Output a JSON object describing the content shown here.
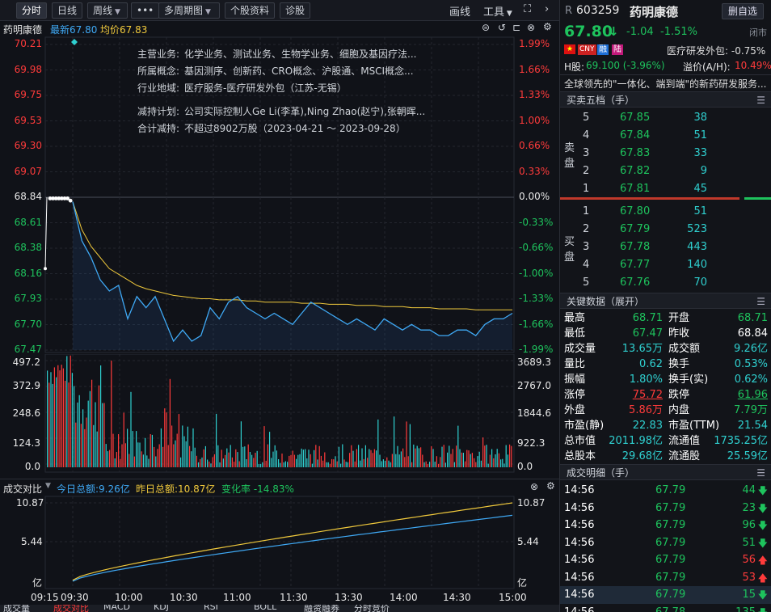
{
  "toolbar": {
    "tabs": [
      "分时",
      "日线",
      "周线",
      "•••",
      "多周期图",
      "个股资料",
      "诊股"
    ],
    "right": [
      "画线",
      "工具"
    ]
  },
  "header": {
    "name": "药明康德",
    "latest": "最新67.80",
    "avg": "均价67.83"
  },
  "price_axis": [
    "70.21",
    "69.98",
    "69.75",
    "69.53",
    "69.30",
    "69.07",
    "68.84",
    "68.61",
    "68.38",
    "68.16",
    "67.93",
    "67.70",
    "67.47"
  ],
  "pct_axis": [
    "1.99%",
    "1.66%",
    "1.33%",
    "1.00%",
    "0.66%",
    "0.33%",
    "0.00%",
    "-0.33%",
    "-0.66%",
    "-1.00%",
    "-1.33%",
    "-1.66%",
    "-1.99%"
  ],
  "info": [
    {
      "k": "主营业务:",
      "v": "化学业务、测试业务、生物学业务、细胞及基因疗法..."
    },
    {
      "k": "所属概念:",
      "v": "基因测序、创新药、CRO概念、沪股通、MSCI概念..."
    },
    {
      "k": "行业地域:",
      "v": "医疗服务-医疗研发外包（江苏-无锡）"
    },
    {
      "k": "减持计划:",
      "v": "公司实际控制人Ge Li(李革),Ning Zhao(赵宁),张朝晖..."
    },
    {
      "k": "合计减持:",
      "v": "不超过8902万股（2023-04-21 ～ 2023-09-28）"
    }
  ],
  "vol_axis_left": [
    "497.2",
    "372.9",
    "248.6",
    "124.3",
    "0.0"
  ],
  "vol_axis_right": [
    "3689.3",
    "2767.0",
    "1844.6",
    "922.3",
    "0.0"
  ],
  "compare": {
    "title": "成交对比",
    "today": "今日总额:9.26亿",
    "yesterday": "昨日总额:10.87亿",
    "change": "变化率 -14.83%",
    "axis_left": [
      "10.87",
      "5.44",
      "亿"
    ],
    "axis_right": [
      "10.87",
      "5.44",
      "亿"
    ]
  },
  "time_axis": [
    "09:15",
    "09:30",
    "10:00",
    "10:30",
    "11:00",
    "11:30",
    "13:30",
    "14:00",
    "14:30",
    "15:00"
  ],
  "bottom_tabs": [
    "成交量",
    "成交对比",
    "MACD",
    "KDJ",
    "RSI",
    "BOLL",
    "融资融券",
    "分时竞价"
  ],
  "stock": {
    "flag": "R",
    "code": "603259",
    "name": "药明康德",
    "delete_btn": "删自选",
    "price": "67.80",
    "change": "-1.04",
    "change_pct": "-1.51%",
    "status": "闭市",
    "badges": [
      "CNY",
      "融",
      "陆"
    ],
    "sector": "医疗研发外包: -0.75%",
    "hshare_label": "H股:",
    "hshare_val": "69.100 (-3.96%)",
    "premium_label": "溢价(A/H):",
    "premium_val": "10.49%",
    "slogan": "全球领先的\"一体化、端到端\"的新药研发服务..."
  },
  "orderbook": {
    "title": "买卖五档（手）",
    "sell_label": [
      "卖",
      "盘"
    ],
    "buy_label": [
      "买",
      "盘"
    ],
    "sell": [
      {
        "n": "5",
        "p": "67.85",
        "v": "38"
      },
      {
        "n": "4",
        "p": "67.84",
        "v": "51"
      },
      {
        "n": "3",
        "p": "67.83",
        "v": "33"
      },
      {
        "n": "2",
        "p": "67.82",
        "v": "9"
      },
      {
        "n": "1",
        "p": "67.81",
        "v": "45"
      }
    ],
    "buy": [
      {
        "n": "1",
        "p": "67.80",
        "v": "51"
      },
      {
        "n": "2",
        "p": "67.79",
        "v": "523"
      },
      {
        "n": "3",
        "p": "67.78",
        "v": "443"
      },
      {
        "n": "4",
        "p": "67.77",
        "v": "140"
      },
      {
        "n": "5",
        "p": "67.76",
        "v": "70"
      }
    ]
  },
  "keydata": {
    "title": "关键数据（展开）",
    "rows": [
      [
        {
          "k": "最高",
          "v": "68.71",
          "c": "green"
        },
        {
          "k": "开盘",
          "v": "68.71",
          "c": "green"
        }
      ],
      [
        {
          "k": "最低",
          "v": "67.47",
          "c": "green"
        },
        {
          "k": "昨收",
          "v": "68.84",
          "c": "white"
        }
      ],
      [
        {
          "k": "成交量",
          "v": "13.65万",
          "c": "cyan"
        },
        {
          "k": "成交额",
          "v": "9.26亿",
          "c": "cyan"
        }
      ],
      [
        {
          "k": "量比",
          "v": "0.62",
          "c": "cyan"
        },
        {
          "k": "换手",
          "v": "0.53%",
          "c": "cyan"
        }
      ],
      [
        {
          "k": "振幅",
          "v": "1.80%",
          "c": "cyan"
        },
        {
          "k": "换手(实)",
          "v": "0.62%",
          "c": "cyan"
        }
      ],
      [
        {
          "k": "涨停",
          "v": "75.72",
          "c": "red"
        },
        {
          "k": "跌停",
          "v": "61.96",
          "c": "green"
        }
      ],
      [
        {
          "k": "外盘",
          "v": "5.86万",
          "c": "red"
        },
        {
          "k": "内盘",
          "v": "7.79万",
          "c": "green"
        }
      ],
      [
        {
          "k": "市盈(静)",
          "v": "22.83",
          "c": "cyan"
        },
        {
          "k": "市盈(TTM)",
          "v": "21.54",
          "c": "cyan"
        }
      ],
      [
        {
          "k": "总市值",
          "v": "2011.98亿",
          "c": "cyan"
        },
        {
          "k": "流通值",
          "v": "1735.25亿",
          "c": "cyan"
        }
      ],
      [
        {
          "k": "总股本",
          "v": "29.68亿",
          "c": "cyan"
        },
        {
          "k": "流通股",
          "v": "25.59亿",
          "c": "cyan"
        }
      ]
    ]
  },
  "ticks": {
    "title": "成交明细（手）",
    "rows": [
      {
        "t": "14:56",
        "p": "67.79",
        "v": "44",
        "d": "down"
      },
      {
        "t": "14:56",
        "p": "67.79",
        "v": "23",
        "d": "down"
      },
      {
        "t": "14:56",
        "p": "67.79",
        "v": "96",
        "d": "down"
      },
      {
        "t": "14:56",
        "p": "67.79",
        "v": "51",
        "d": "down"
      },
      {
        "t": "14:56",
        "p": "67.79",
        "v": "56",
        "d": "up"
      },
      {
        "t": "14:56",
        "p": "67.79",
        "v": "53",
        "d": "up"
      },
      {
        "t": "14:56",
        "p": "67.79",
        "v": "15",
        "d": "down"
      },
      {
        "t": "14:56",
        "p": "67.78",
        "v": "135",
        "d": "down"
      }
    ]
  },
  "chart_data": {
    "type": "line",
    "ylim": [
      67.47,
      70.21
    ],
    "prev_close": 68.84,
    "x": [
      "09:30",
      "09:35",
      "09:40",
      "09:45",
      "09:50",
      "09:55",
      "10:00",
      "10:05",
      "10:10",
      "10:15",
      "10:20",
      "10:25",
      "10:30",
      "10:35",
      "10:40",
      "10:45",
      "10:50",
      "10:55",
      "11:00",
      "11:05",
      "11:10",
      "11:15",
      "11:20",
      "11:25",
      "11:30",
      "13:05",
      "13:10",
      "13:15",
      "13:20",
      "13:25",
      "13:30",
      "13:35",
      "13:40",
      "13:45",
      "13:50",
      "13:55",
      "14:00",
      "14:05",
      "14:10",
      "14:15",
      "14:20",
      "14:25",
      "14:30",
      "14:35",
      "14:40",
      "14:45",
      "14:50",
      "14:55",
      "15:00"
    ],
    "series": [
      {
        "values": [
          68.8,
          68.45,
          68.3,
          68.1,
          68.0,
          68.05,
          67.75,
          67.95,
          67.85,
          67.95,
          67.75,
          67.55,
          67.65,
          67.55,
          67.6,
          67.85,
          67.75,
          67.9,
          67.95,
          67.85,
          67.8,
          67.75,
          67.8,
          67.75,
          67.7,
          67.8,
          67.9,
          67.85,
          67.8,
          67.75,
          67.7,
          67.75,
          67.7,
          67.65,
          67.75,
          67.7,
          67.65,
          67.7,
          67.65,
          67.65,
          67.6,
          67.6,
          67.65,
          67.65,
          67.6,
          67.7,
          67.75,
          67.75,
          67.8
        ]
      },
      {
        "values": [
          68.8,
          68.55,
          68.4,
          68.3,
          68.2,
          68.15,
          68.1,
          68.05,
          68.02,
          68.0,
          67.98,
          67.96,
          67.95,
          67.94,
          67.93,
          67.93,
          67.92,
          67.92,
          67.92,
          67.91,
          67.91,
          67.9,
          67.9,
          67.9,
          67.9,
          67.89,
          67.89,
          67.89,
          67.88,
          67.88,
          67.88,
          67.87,
          67.87,
          67.87,
          67.86,
          67.86,
          67.86,
          67.85,
          67.85,
          67.85,
          67.84,
          67.84,
          67.84,
          67.84,
          67.83,
          67.83,
          67.83,
          67.83,
          67.83
        ]
      }
    ]
  }
}
